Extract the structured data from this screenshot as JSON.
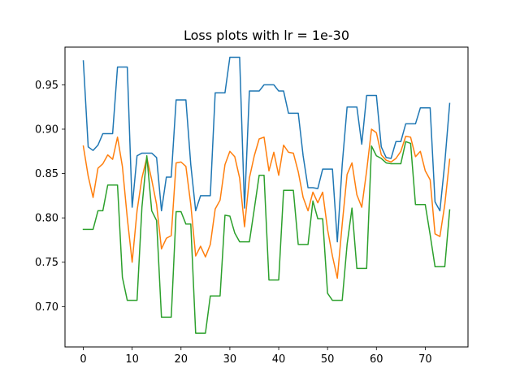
{
  "chart_data": {
    "type": "line",
    "title": "Loss plots with lr = 1e-30",
    "xlabel": "",
    "ylabel": "",
    "xlim": [
      -3.75,
      78.75
    ],
    "ylim": [
      0.6545,
      0.9925
    ],
    "grid": false,
    "x_ticks": [
      0,
      10,
      20,
      30,
      40,
      50,
      60,
      70
    ],
    "x_tick_labels": [
      "0",
      "10",
      "20",
      "30",
      "40",
      "50",
      "60",
      "70"
    ],
    "y_ticks": [
      0.7,
      0.75,
      0.8,
      0.85,
      0.9,
      0.95
    ],
    "y_tick_labels": [
      "0.70",
      "0.75",
      "0.80",
      "0.85",
      "0.90",
      "0.95"
    ],
    "x": [
      0,
      1,
      2,
      3,
      4,
      5,
      6,
      7,
      8,
      9,
      10,
      11,
      12,
      13,
      14,
      15,
      16,
      17,
      18,
      19,
      20,
      21,
      22,
      23,
      24,
      25,
      26,
      27,
      28,
      29,
      30,
      31,
      32,
      33,
      34,
      35,
      36,
      37,
      38,
      39,
      40,
      41,
      42,
      43,
      44,
      45,
      46,
      47,
      48,
      49,
      50,
      51,
      52,
      53,
      54,
      55,
      56,
      57,
      58,
      59,
      60,
      61,
      62,
      63,
      64,
      65,
      66,
      67,
      68,
      69,
      70,
      71,
      72,
      73,
      74,
      75
    ],
    "series": [
      {
        "color": "#1f77b4",
        "values": [
          0.977,
          0.88,
          0.876,
          0.882,
          0.895,
          0.895,
          0.895,
          0.97,
          0.97,
          0.97,
          0.812,
          0.87,
          0.873,
          0.873,
          0.873,
          0.868,
          0.808,
          0.846,
          0.846,
          0.933,
          0.933,
          0.933,
          0.86,
          0.808,
          0.825,
          0.825,
          0.825,
          0.941,
          0.941,
          0.941,
          0.981,
          0.981,
          0.981,
          0.811,
          0.943,
          0.943,
          0.943,
          0.95,
          0.95,
          0.95,
          0.943,
          0.943,
          0.918,
          0.918,
          0.918,
          0.87,
          0.834,
          0.834,
          0.833,
          0.855,
          0.855,
          0.855,
          0.773,
          0.86,
          0.925,
          0.925,
          0.925,
          0.883,
          0.938,
          0.938,
          0.938,
          0.88,
          0.868,
          0.867,
          0.886,
          0.886,
          0.906,
          0.906,
          0.906,
          0.924,
          0.924,
          0.924,
          0.818,
          0.808,
          0.862,
          0.929
        ]
      },
      {
        "color": "#ff7f0e",
        "values": [
          0.881,
          0.847,
          0.823,
          0.856,
          0.861,
          0.871,
          0.866,
          0.891,
          0.858,
          0.8,
          0.75,
          0.808,
          0.845,
          0.868,
          0.843,
          0.815,
          0.765,
          0.777,
          0.78,
          0.862,
          0.863,
          0.858,
          0.815,
          0.757,
          0.768,
          0.756,
          0.77,
          0.81,
          0.82,
          0.86,
          0.875,
          0.869,
          0.845,
          0.79,
          0.845,
          0.87,
          0.889,
          0.891,
          0.853,
          0.874,
          0.848,
          0.882,
          0.874,
          0.873,
          0.852,
          0.823,
          0.808,
          0.829,
          0.817,
          0.829,
          0.787,
          0.757,
          0.732,
          0.793,
          0.849,
          0.862,
          0.826,
          0.812,
          0.853,
          0.9,
          0.896,
          0.871,
          0.865,
          0.863,
          0.867,
          0.875,
          0.892,
          0.891,
          0.869,
          0.875,
          0.853,
          0.843,
          0.782,
          0.779,
          0.815,
          0.866
        ]
      },
      {
        "color": "#2ca02c",
        "values": [
          0.787,
          0.787,
          0.787,
          0.808,
          0.808,
          0.837,
          0.837,
          0.837,
          0.733,
          0.707,
          0.707,
          0.707,
          0.812,
          0.87,
          0.808,
          0.797,
          0.688,
          0.688,
          0.688,
          0.807,
          0.807,
          0.793,
          0.793,
          0.67,
          0.67,
          0.67,
          0.712,
          0.712,
          0.712,
          0.803,
          0.802,
          0.783,
          0.773,
          0.773,
          0.773,
          0.81,
          0.848,
          0.848,
          0.73,
          0.73,
          0.73,
          0.831,
          0.831,
          0.831,
          0.77,
          0.77,
          0.77,
          0.819,
          0.799,
          0.799,
          0.715,
          0.707,
          0.707,
          0.707,
          0.77,
          0.811,
          0.743,
          0.743,
          0.743,
          0.881,
          0.87,
          0.867,
          0.862,
          0.861,
          0.861,
          0.861,
          0.886,
          0.884,
          0.815,
          0.815,
          0.815,
          0.781,
          0.745,
          0.745,
          0.745,
          0.809
        ]
      }
    ]
  }
}
